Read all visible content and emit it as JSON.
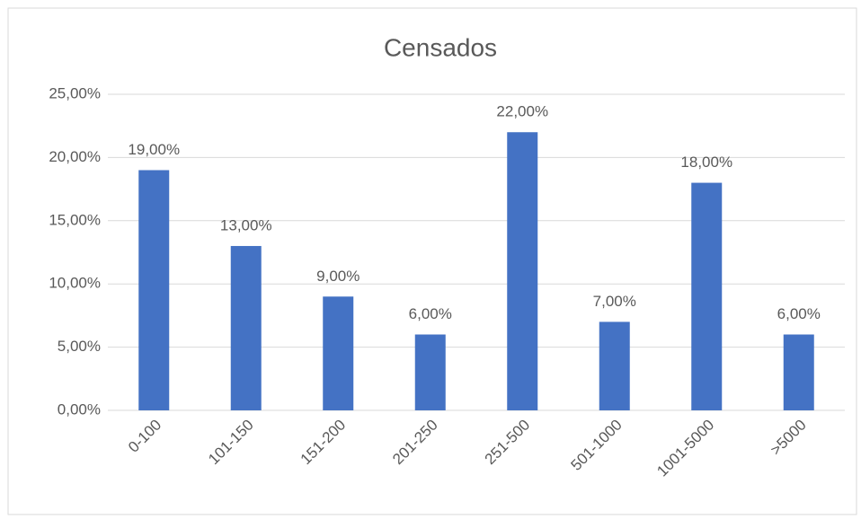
{
  "chart_data": {
    "type": "bar",
    "title": "Censados",
    "categories": [
      "0-100",
      "101-150",
      "151-200",
      "201-250",
      "251-500",
      "501-1000",
      "1001-5000",
      ">5000"
    ],
    "values": [
      19,
      13,
      9,
      6,
      22,
      7,
      18,
      6
    ],
    "value_labels": [
      "19,00%",
      "13,00%",
      "9,00%",
      "6,00%",
      "22,00%",
      "7,00%",
      "18,00%",
      "6,00%"
    ],
    "color": "#4472c4",
    "ylim": [
      0,
      25
    ],
    "yticks": [
      {
        "value": 0,
        "label": "0,00%"
      },
      {
        "value": 5,
        "label": "5,00%"
      },
      {
        "value": 10,
        "label": "10,00%"
      },
      {
        "value": 15,
        "label": "15,00%"
      },
      {
        "value": 20,
        "label": "20,00%"
      },
      {
        "value": 25,
        "label": "25,00%"
      }
    ],
    "grid": true
  }
}
